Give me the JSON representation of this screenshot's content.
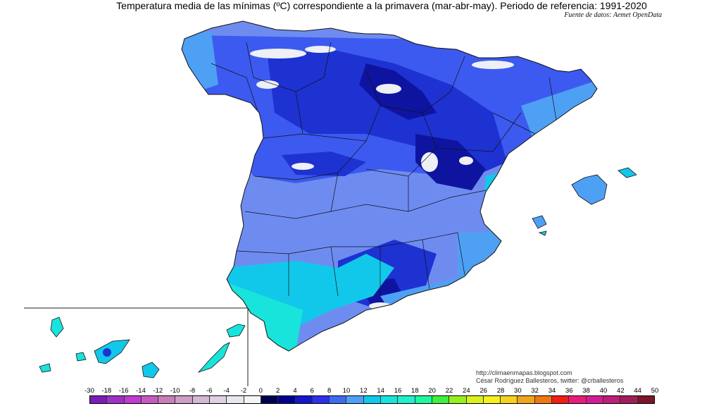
{
  "title": "Temperatura media de las mínimas (ºC) correspondiente a la primavera (mar-abr-may). Periodo de referencia: 1991-2020",
  "source": "Fuente de datos: Aemet OpenData",
  "credit": {
    "line1": "http://climaenmapas.blogspot.com",
    "line2": "César Rodríguez Ballesteros, twitter: @crballesteros"
  },
  "legend": {
    "ticks": [
      "-30",
      "-18",
      "-16",
      "-14",
      "-12",
      "-10",
      "-8",
      "-6",
      "-4",
      "-2",
      "0",
      "2",
      "4",
      "6",
      "8",
      "10",
      "12",
      "14",
      "16",
      "18",
      "20",
      "22",
      "24",
      "26",
      "28",
      "30",
      "32",
      "34",
      "36",
      "38",
      "40",
      "42",
      "44",
      "50"
    ],
    "colors": [
      "#7a1fb5",
      "#9d31c8",
      "#c03bcf",
      "#c45cc0",
      "#c97eb8",
      "#cc9fc6",
      "#d5b8d6",
      "#dfd0e2",
      "#eae6ee",
      "#f5f5f5",
      "#000050",
      "#00008c",
      "#1616c8",
      "#2f2fee",
      "#3c6cf0",
      "#4ea0f5",
      "#12c8ea",
      "#18e4dc",
      "#20f0cc",
      "#20f89c",
      "#3cf03c",
      "#96f01e",
      "#dcf01e",
      "#f5f01e",
      "#f5d21e",
      "#f0a51e",
      "#f07814",
      "#f01e14",
      "#e61e78",
      "#d21e96",
      "#be1e78",
      "#a01e5a",
      "#7d1428"
    ],
    "unit": "ºC"
  },
  "map": {
    "regions": [
      "Península Ibérica (España)",
      "Islas Baleares",
      "Islas Canarias"
    ],
    "colors": {
      "coast_warm": "#18e4dc",
      "lowland": "#6e8cf0",
      "meseta": "#3c5af0",
      "highland": "#1e32d2",
      "mountain": "#0f14a0",
      "snow_peaks": "#eef0f5"
    }
  }
}
